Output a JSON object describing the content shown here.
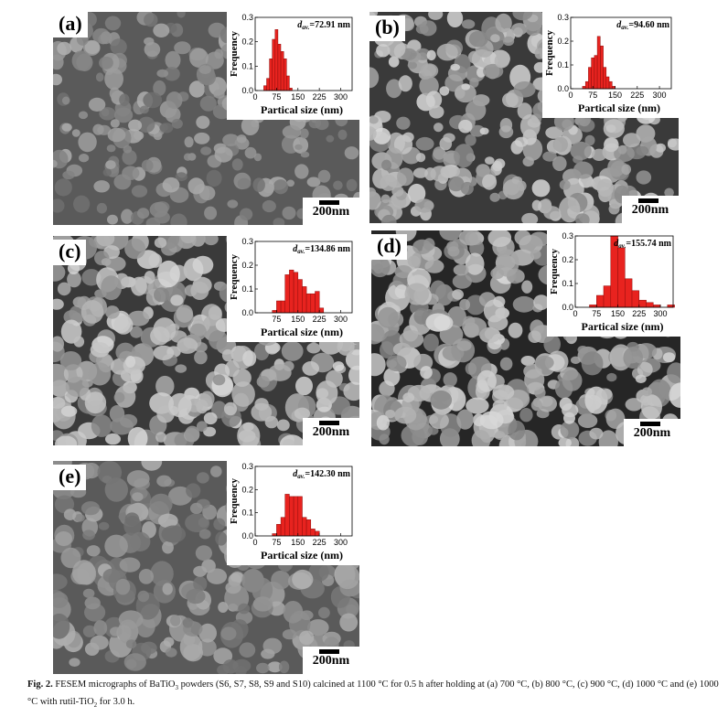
{
  "panels": [
    {
      "label": "(a)",
      "scale": "200nm",
      "chart_data": {
        "type": "bar",
        "title": "",
        "d_av_prefix": "d",
        "d_av_sub": "av.",
        "d_av_value": "=72.91 nm",
        "xlabel": "Partical size (nm)",
        "ylabel": "Frequency",
        "xlim": [
          0,
          340
        ],
        "ylim": [
          0,
          0.3
        ],
        "xticks": [
          0,
          75,
          150,
          225,
          300
        ],
        "yticks": [
          0.0,
          0.1,
          0.2,
          0.3
        ],
        "bin_width": 10,
        "bins": [
          30,
          40,
          50,
          60,
          70,
          80,
          90,
          100,
          110,
          120
        ],
        "values": [
          0.02,
          0.05,
          0.13,
          0.21,
          0.25,
          0.19,
          0.16,
          0.13,
          0.06,
          0.01
        ]
      }
    },
    {
      "label": "(b)",
      "scale": "200nm",
      "chart_data": {
        "type": "bar",
        "title": "",
        "d_av_prefix": "d",
        "d_av_sub": "av.",
        "d_av_value": "=94.60 nm",
        "xlabel": "Partical size (nm)",
        "ylabel": "Frequency",
        "xlim": [
          0,
          340
        ],
        "ylim": [
          0,
          0.3
        ],
        "xticks": [
          0,
          75,
          150,
          225,
          300
        ],
        "yticks": [
          0.0,
          0.1,
          0.2,
          0.3
        ],
        "bin_width": 10,
        "bins": [
          40,
          50,
          60,
          70,
          80,
          90,
          100,
          110,
          120,
          130,
          140
        ],
        "values": [
          0.01,
          0.03,
          0.09,
          0.13,
          0.14,
          0.22,
          0.18,
          0.09,
          0.05,
          0.03,
          0.01
        ]
      }
    },
    {
      "label": "(c)",
      "scale": "200nm",
      "chart_data": {
        "type": "bar",
        "title": "",
        "d_av_prefix": "d",
        "d_av_sub": "av.",
        "d_av_value": "=134.86 nm",
        "xlabel": "Partical size (nm)",
        "ylabel": "Frequency",
        "xlim": [
          0,
          340
        ],
        "ylim": [
          0,
          0.3
        ],
        "xticks": [
          75,
          150,
          225,
          300
        ],
        "yticks": [
          0.0,
          0.1,
          0.2,
          0.3
        ],
        "bin_width": 15,
        "bins": [
          60,
          75,
          90,
          105,
          120,
          135,
          150,
          165,
          180,
          195,
          210,
          225
        ],
        "values": [
          0.01,
          0.05,
          0.05,
          0.16,
          0.18,
          0.17,
          0.14,
          0.11,
          0.08,
          0.08,
          0.09,
          0.02
        ]
      }
    },
    {
      "label": "(d)",
      "scale": "200nm",
      "chart_data": {
        "type": "bar",
        "title": "",
        "d_av_prefix": "d",
        "d_av_sub": "av.",
        "d_av_value": "=155.74 nm",
        "xlabel": "Partical size (nm)",
        "ylabel": "Frequency",
        "xlim": [
          0,
          345
        ],
        "ylim": [
          0,
          0.3
        ],
        "xticks": [
          0,
          75,
          150,
          225,
          300
        ],
        "yticks": [
          0.0,
          0.1,
          0.2,
          0.3
        ],
        "bin_width": 25,
        "bins": [
          50,
          75,
          100,
          125,
          150,
          175,
          200,
          225,
          250,
          275,
          300,
          325
        ],
        "values": [
          0.01,
          0.05,
          0.09,
          0.3,
          0.25,
          0.12,
          0.07,
          0.03,
          0.02,
          0.01,
          0.0,
          0.01
        ]
      }
    },
    {
      "label": "(e)",
      "scale": "200nm",
      "chart_data": {
        "type": "bar",
        "title": "",
        "d_av_prefix": "d",
        "d_av_sub": "av.",
        "d_av_value": "=142.30 nm",
        "xlabel": "Partical size (nm)",
        "ylabel": "Frequency",
        "xlim": [
          0,
          340
        ],
        "ylim": [
          0,
          0.3
        ],
        "xticks": [
          0,
          75,
          150,
          225,
          300
        ],
        "yticks": [
          0.0,
          0.1,
          0.2,
          0.3
        ],
        "bin_width": 15,
        "bins": [
          60,
          75,
          90,
          105,
          120,
          135,
          150,
          165,
          180,
          195,
          210
        ],
        "values": [
          0.01,
          0.05,
          0.08,
          0.18,
          0.17,
          0.17,
          0.17,
          0.08,
          0.07,
          0.03,
          0.02
        ]
      }
    }
  ],
  "caption": {
    "label": "Fig. 2.",
    "text": "FESEM micrographs of BaTiO",
    "sub1": "3",
    "text2": " powders (S6, S7, S8, S9 and S10) calcined at 1100 °C for 0.5 h after holding at (a) 700 °C, (b) 800 °C, (c) 900 °C, (d) 1000 °C and (e) 1000 °C with rutil-TiO",
    "sub2": "2",
    "text3": " for 3.0 h."
  },
  "colors": {
    "bar_fill": "#e8231f",
    "bar_stroke": "#8a0d0b"
  }
}
